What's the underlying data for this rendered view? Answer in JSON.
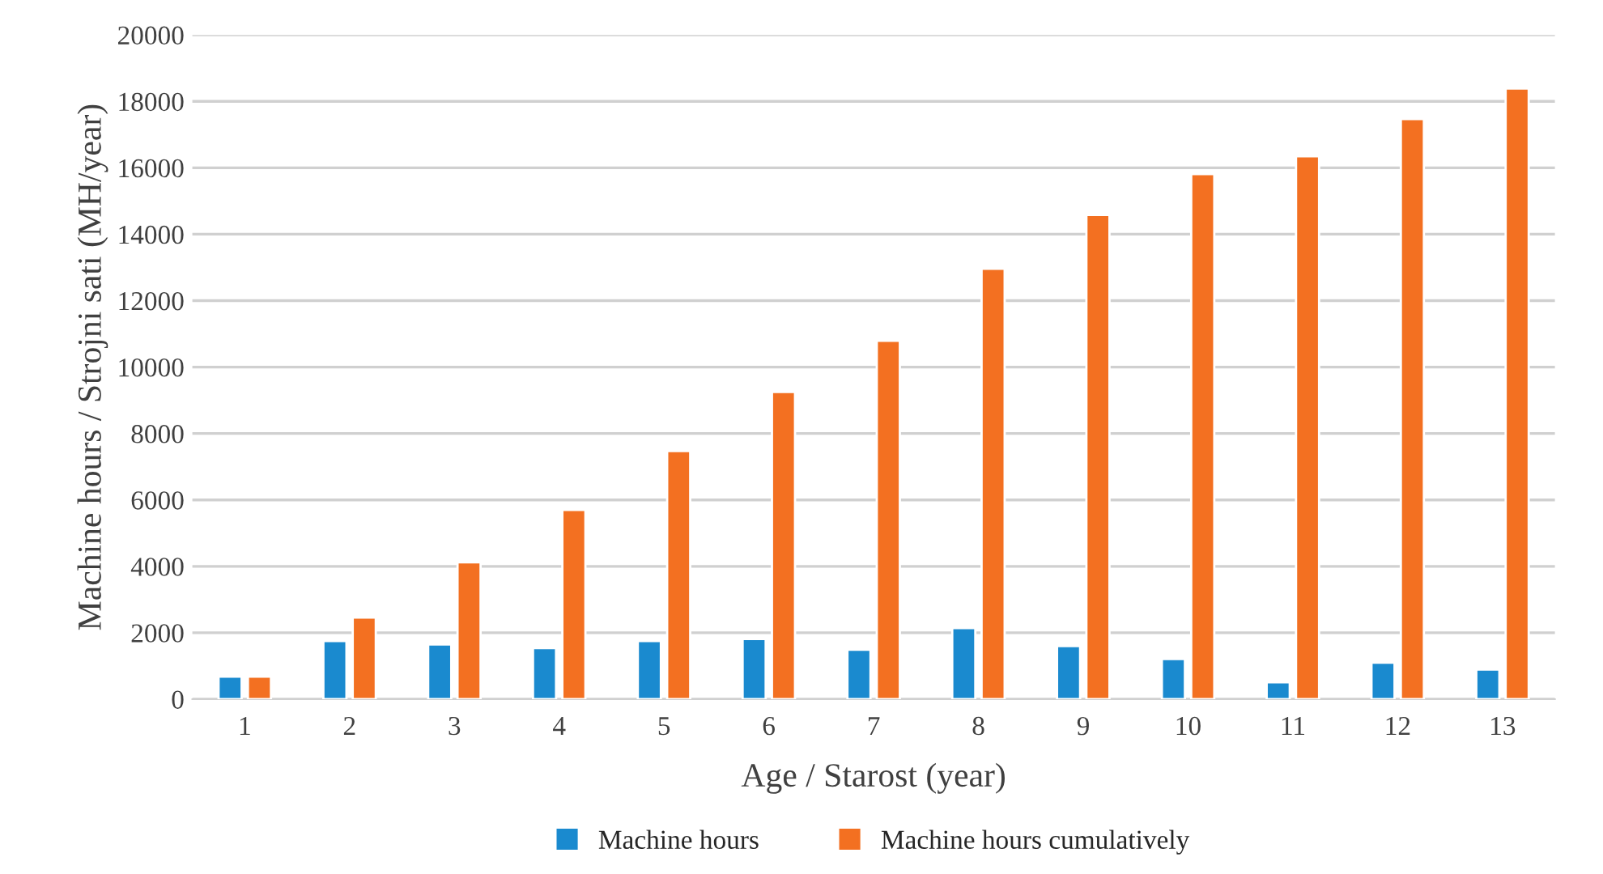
{
  "chart_data": {
    "type": "bar",
    "categories": [
      "1",
      "2",
      "3",
      "4",
      "5",
      "6",
      "7",
      "8",
      "9",
      "10",
      "11",
      "12",
      "13"
    ],
    "series": [
      {
        "name": "Machine hours",
        "color": "#1a8acf",
        "values": [
          680,
          1750,
          1650,
          1540,
          1750,
          1810,
          1490,
          2140,
          1600,
          1210,
          510,
          1100,
          890
        ]
      },
      {
        "name": "Machine hours cumulatively",
        "color": "#f37021",
        "values": [
          680,
          2460,
          4120,
          5700,
          7470,
          9250,
          10790,
          12960,
          14580,
          15810,
          16350,
          17470,
          18390
        ]
      }
    ],
    "xlabel": "Age / Starost (year)",
    "ylabel": "Machine hours / Strojni sati (MH/year)",
    "ylim": [
      0,
      20000
    ],
    "yticks": [
      0,
      2000,
      4000,
      6000,
      8000,
      10000,
      12000,
      14000,
      16000,
      18000,
      20000
    ],
    "grid": "y",
    "legend": "bottom"
  }
}
